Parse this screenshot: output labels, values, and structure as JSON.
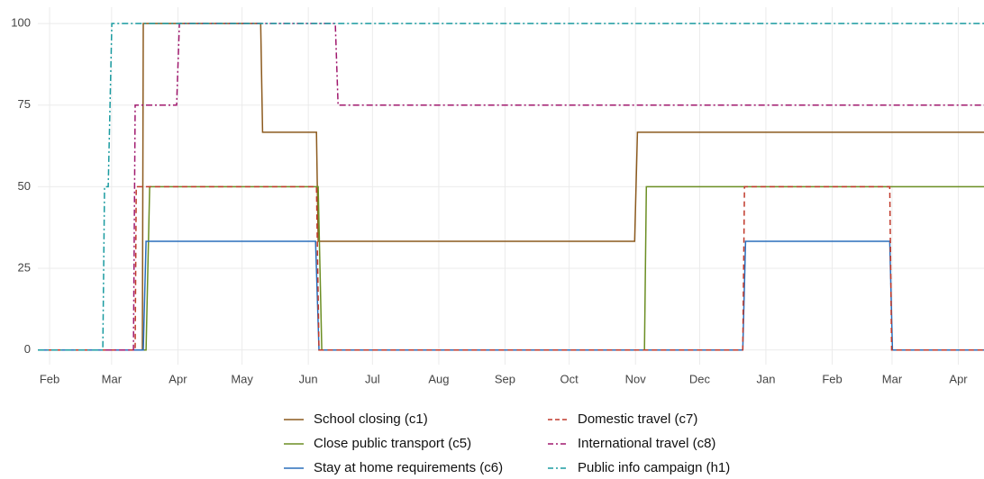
{
  "chart_data": {
    "type": "line",
    "step_corners": true,
    "xlim": [
      -5.5,
      437
    ],
    "ylim": [
      -4.5,
      105
    ],
    "xticks": [
      {
        "value": 0,
        "label": "Feb"
      },
      {
        "value": 29,
        "label": "Mar"
      },
      {
        "value": 60,
        "label": "Apr"
      },
      {
        "value": 90,
        "label": "May"
      },
      {
        "value": 121,
        "label": "Jun"
      },
      {
        "value": 151,
        "label": "Jul"
      },
      {
        "value": 182,
        "label": "Aug"
      },
      {
        "value": 213,
        "label": "Sep"
      },
      {
        "value": 243,
        "label": "Oct"
      },
      {
        "value": 274,
        "label": "Nov"
      },
      {
        "value": 304,
        "label": "Dec"
      },
      {
        "value": 335,
        "label": "Jan"
      },
      {
        "value": 366,
        "label": "Feb"
      },
      {
        "value": 394,
        "label": "Mar"
      },
      {
        "value": 425,
        "label": "Apr"
      }
    ],
    "yticks": [
      0,
      25,
      50,
      75,
      100
    ],
    "grid": true,
    "series": [
      {
        "name": "School closing (c1)",
        "color": "#8c5a1e",
        "linestyle": "solid",
        "x": [
          -5.5,
          43.4,
          43.8,
          98.7,
          99.6,
          124.8,
          125.6,
          273.6,
          274.9,
          437
        ],
        "values": [
          0,
          0,
          100,
          100,
          66.7,
          66.7,
          33.3,
          33.3,
          66.7,
          66.7
        ]
      },
      {
        "name": "Close public transport (c5)",
        "color": "#6b8e23",
        "linestyle": "solid",
        "x": [
          -5.5,
          45.1,
          46.8,
          125.6,
          127.3,
          278.2,
          279.1,
          437
        ],
        "values": [
          0,
          0,
          50,
          50,
          0,
          0,
          50,
          50
        ]
      },
      {
        "name": "Stay at home requirements (c6)",
        "color": "#2a6ebb",
        "linestyle": "solid",
        "x": [
          -5.5,
          43.8,
          45.1,
          124.4,
          126,
          324.2,
          325.5,
          392.9,
          394.2,
          437
        ],
        "values": [
          0,
          0,
          33.3,
          33.3,
          0,
          0,
          33.3,
          33.3,
          0,
          0
        ]
      },
      {
        "name": "Domestic travel (c7)",
        "color": "#c0392b",
        "linestyle": "dashed",
        "x": [
          -5.5,
          40,
          40.5,
          124.8,
          126,
          324.2,
          325,
          392.9,
          393.8,
          437
        ],
        "values": [
          0,
          0,
          50,
          50,
          0,
          0,
          50,
          50,
          0,
          0
        ]
      },
      {
        "name": "International travel (c8)",
        "color": "#a0196e",
        "linestyle": "dashdot",
        "x": [
          -5.5,
          39.2,
          40,
          59.4,
          60.7,
          133.6,
          134.9,
          437
        ],
        "values": [
          0,
          0,
          75,
          75,
          100,
          100,
          75,
          75
        ]
      },
      {
        "name": "Public info campaign (h1)",
        "color": "#1a9ba0",
        "linestyle": "dashdot",
        "x": [
          -5.5,
          24.9,
          25.7,
          27.4,
          29.1,
          437
        ],
        "values": [
          0,
          0,
          50,
          50,
          100,
          100
        ]
      }
    ]
  }
}
